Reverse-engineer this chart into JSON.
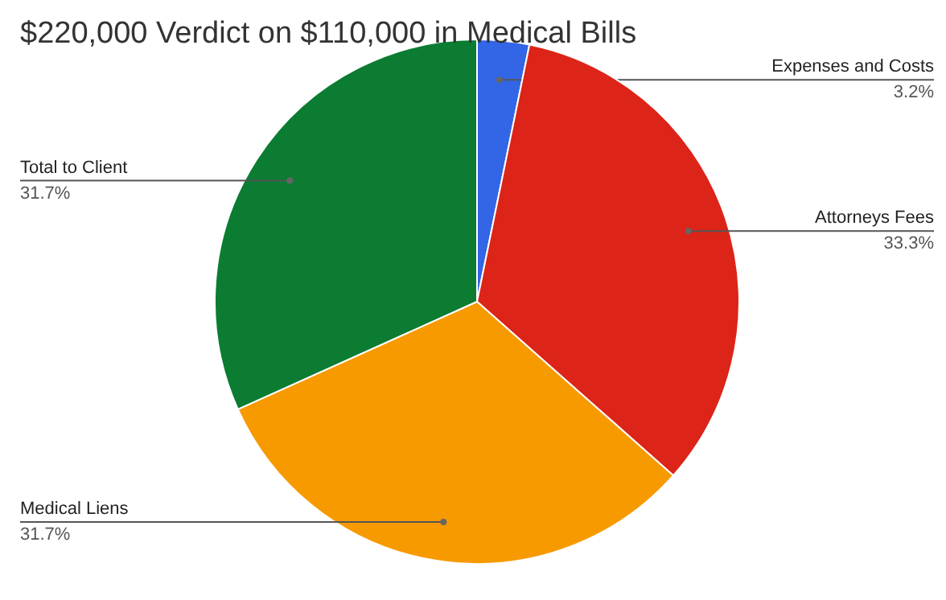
{
  "chart_data": {
    "type": "pie",
    "title": "$220,000 Verdict on $110,000 in Medical Bills",
    "categories": [
      "Expenses and Costs",
      "Attorneys Fees",
      "Medical Liens",
      "Total to Client"
    ],
    "values": [
      3.2,
      33.3,
      31.7,
      31.7
    ],
    "colors": [
      "#3366e6",
      "#dc2418",
      "#f79a00",
      "#0b7c32"
    ],
    "value_labels": [
      "3.2%",
      "33.3%",
      "31.7%",
      "31.7%"
    ]
  }
}
